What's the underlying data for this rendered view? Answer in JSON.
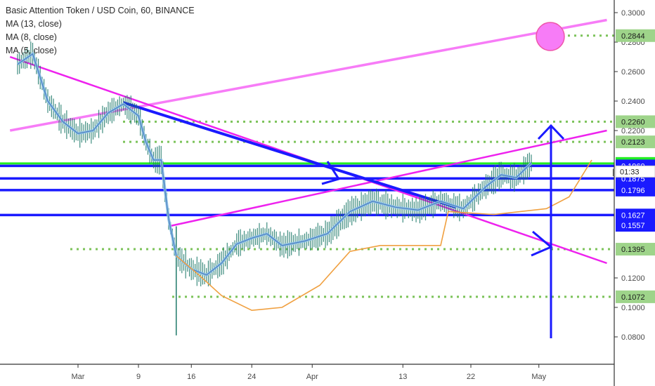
{
  "legend": {
    "title": "Basic Attention Token / USD Coin, 60, BINANCE",
    "ma13": "MA (13, close)",
    "ma8": "MA (8, close)",
    "ma5": "MA (5, close)"
  },
  "colors": {
    "price_blue": "#1a1aff",
    "magenta": "#ee22ee",
    "magenta_light": "#f77cf7",
    "green_line": "#22ee22",
    "green_dotted": "#7cc35a",
    "tag_green": "#9ed48a",
    "orange_ma": "#f0a040",
    "candles": "#1f7a6a",
    "ma_light_blue": "#8fc4e8"
  },
  "chart_data": {
    "type": "line",
    "title": "Basic Attention Token / USD Coin, 60, BINANCE",
    "xlabel": "",
    "ylabel": "",
    "ylim": [
      0.07,
      0.31
    ],
    "y_ticks": [
      "0.3000",
      "0.2800",
      "0.2600",
      "0.2400",
      "0.2200",
      "0.1200",
      "0.1000",
      "0.0800"
    ],
    "x_ticks": [
      "Mar",
      "9",
      "16",
      "24",
      "Apr",
      "13",
      "22",
      "May"
    ],
    "price_series": [
      {
        "date": "Feb 22",
        "close": 0.265
      },
      {
        "date": "Feb 24",
        "close": 0.272
      },
      {
        "date": "Feb 26",
        "close": 0.24
      },
      {
        "date": "Feb 28",
        "close": 0.226
      },
      {
        "date": "Mar 1",
        "close": 0.218
      },
      {
        "date": "Mar 3",
        "close": 0.22
      },
      {
        "date": "Mar 5",
        "close": 0.232
      },
      {
        "date": "Mar 7",
        "close": 0.238
      },
      {
        "date": "Mar 9",
        "close": 0.23
      },
      {
        "date": "Mar 10",
        "close": 0.212
      },
      {
        "date": "Mar 11",
        "close": 0.2
      },
      {
        "date": "Mar 12",
        "close": 0.2
      },
      {
        "date": "Mar 13",
        "close": 0.16
      },
      {
        "date": "Mar 14",
        "close": 0.135
      },
      {
        "date": "Mar 16",
        "close": 0.126
      },
      {
        "date": "Mar 18",
        "close": 0.122
      },
      {
        "date": "Mar 20",
        "close": 0.13
      },
      {
        "date": "Mar 22",
        "close": 0.143
      },
      {
        "date": "Mar 24",
        "close": 0.147
      },
      {
        "date": "Mar 26",
        "close": 0.15
      },
      {
        "date": "Mar 28",
        "close": 0.142
      },
      {
        "date": "Mar 31",
        "close": 0.145
      },
      {
        "date": "Apr 3",
        "close": 0.15
      },
      {
        "date": "Apr 6",
        "close": 0.165
      },
      {
        "date": "Apr 9",
        "close": 0.172
      },
      {
        "date": "Apr 12",
        "close": 0.168
      },
      {
        "date": "Apr 15",
        "close": 0.166
      },
      {
        "date": "Apr 18",
        "close": 0.172
      },
      {
        "date": "Apr 21",
        "close": 0.167
      },
      {
        "date": "Apr 24",
        "close": 0.182
      },
      {
        "date": "Apr 26",
        "close": 0.19
      },
      {
        "date": "Apr 28",
        "close": 0.188
      },
      {
        "date": "Apr 30",
        "close": 0.198
      }
    ],
    "orange_ma_series": [
      {
        "date": "Mar 14",
        "close": 0.135
      },
      {
        "date": "Mar 17",
        "close": 0.122
      },
      {
        "date": "Mar 20",
        "close": 0.108
      },
      {
        "date": "Mar 24",
        "close": 0.098
      },
      {
        "date": "Mar 28",
        "close": 0.1
      },
      {
        "date": "Apr 2",
        "close": 0.115
      },
      {
        "date": "Apr 6",
        "close": 0.138
      },
      {
        "date": "Apr 10",
        "close": 0.142
      },
      {
        "date": "Apr 18",
        "close": 0.142
      },
      {
        "date": "Apr 19",
        "close": 0.165
      },
      {
        "date": "Apr 25",
        "close": 0.163
      },
      {
        "date": "May 2",
        "close": 0.167
      },
      {
        "date": "May 5",
        "close": 0.175
      },
      {
        "date": "May 8",
        "close": 0.2
      }
    ],
    "horizontal_levels": [
      {
        "value": 0.2844,
        "label": "0.2844",
        "style": "green-dotted"
      },
      {
        "value": 0.226,
        "label": "0.2260",
        "style": "green-dotted"
      },
      {
        "value": 0.2123,
        "label": "0.2123",
        "style": "green-dotted"
      },
      {
        "value": 0.1977,
        "label": "0.1977",
        "style": "green-solid"
      },
      {
        "value": 0.196,
        "label": "0.1960",
        "style": "blue-solid"
      },
      {
        "value": 0.1875,
        "label": "0.1875",
        "style": "blue-solid"
      },
      {
        "value": 0.1796,
        "label": "0.1796",
        "style": "blue-solid"
      },
      {
        "value": 0.1627,
        "label": "0.1627",
        "style": "blue-solid"
      },
      {
        "value": 0.1557,
        "label": "0.1557",
        "style": "none"
      },
      {
        "value": 0.1395,
        "label": "0.1395",
        "style": "green-dotted"
      },
      {
        "value": 0.1072,
        "label": "0.1072",
        "style": "green-dotted"
      }
    ],
    "current_price_label": "0.1977",
    "countdown_label": "01:33",
    "trendlines": [
      {
        "name": "upper magenta",
        "from": {
          "date": "Feb 21",
          "value": 0.22
        },
        "to": {
          "date": "May 10",
          "value": 0.295
        }
      },
      {
        "name": "channel top",
        "from": {
          "date": "Mar 13",
          "value": 0.155
        },
        "to": {
          "date": "May 10",
          "value": 0.22
        }
      },
      {
        "name": "descending magenta",
        "from": {
          "date": "Feb 21",
          "value": 0.27
        },
        "to": {
          "date": "May 10",
          "value": 0.13
        }
      },
      {
        "name": "descending blue",
        "from": {
          "date": "Mar 7",
          "value": 0.239
        },
        "to": {
          "date": "Apr 20",
          "value": 0.168
        }
      }
    ]
  }
}
